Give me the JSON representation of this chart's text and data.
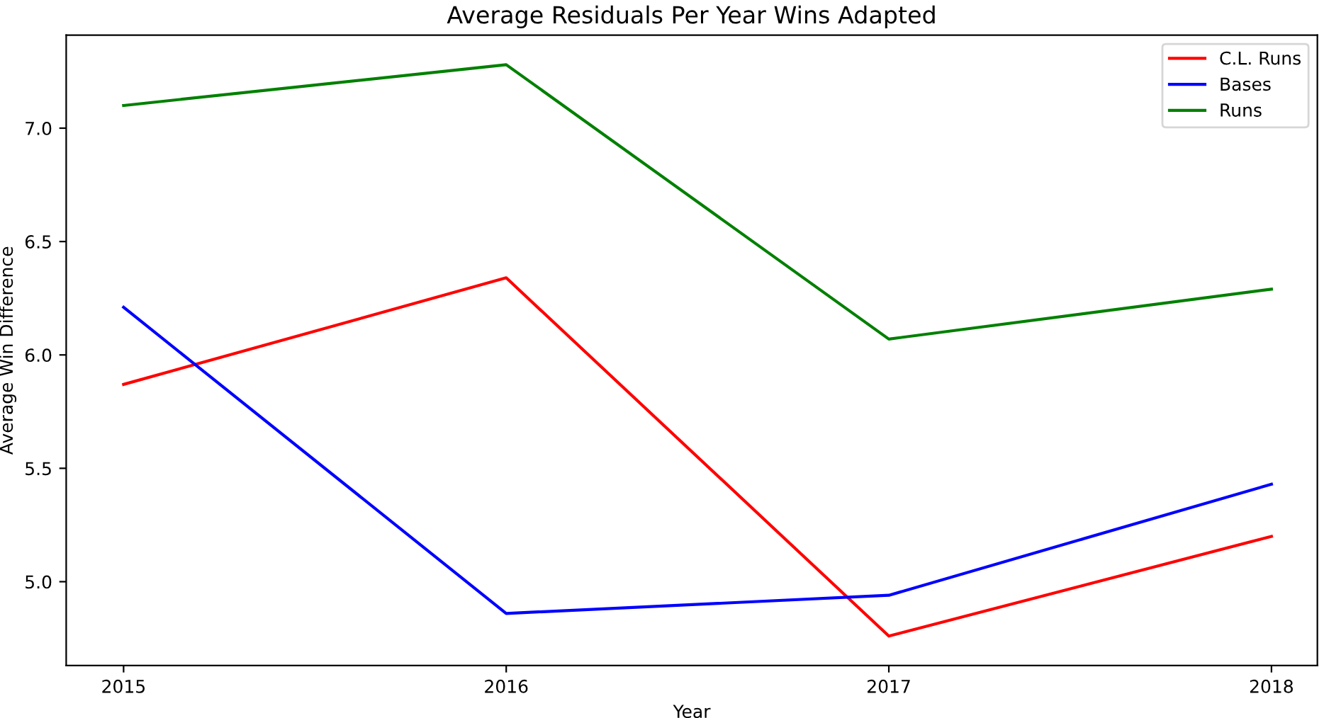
{
  "chart_data": {
    "type": "line",
    "title": "Average Residuals Per Year Wins Adapted",
    "xlabel": "Year",
    "ylabel": "Average Win Difference",
    "x": [
      2015,
      2016,
      2017,
      2018
    ],
    "series": [
      {
        "name": "C.L. Runs",
        "color": "#ff0000",
        "values": [
          5.87,
          6.34,
          4.76,
          5.2
        ]
      },
      {
        "name": "Bases",
        "color": "#0000ff",
        "values": [
          6.21,
          4.86,
          4.94,
          5.43
        ]
      },
      {
        "name": "Runs",
        "color": "#008000",
        "values": [
          7.1,
          7.28,
          6.07,
          6.29
        ]
      }
    ],
    "xlim": [
      2014.85,
      2018.12
    ],
    "xticks": [
      2015,
      2016,
      2017,
      2018
    ],
    "ylim": [
      4.63,
      7.41
    ],
    "yticks": [
      {
        "value": 5.0,
        "label": "5.0"
      },
      {
        "value": 5.5,
        "label": "5.5"
      },
      {
        "value": 6.0,
        "label": "6.0"
      },
      {
        "value": 6.5,
        "label": "6.5"
      },
      {
        "value": 7.0,
        "label": "7.0"
      }
    ],
    "grid": false,
    "legend": "top right",
    "marker": "none",
    "line_style": "solid"
  }
}
